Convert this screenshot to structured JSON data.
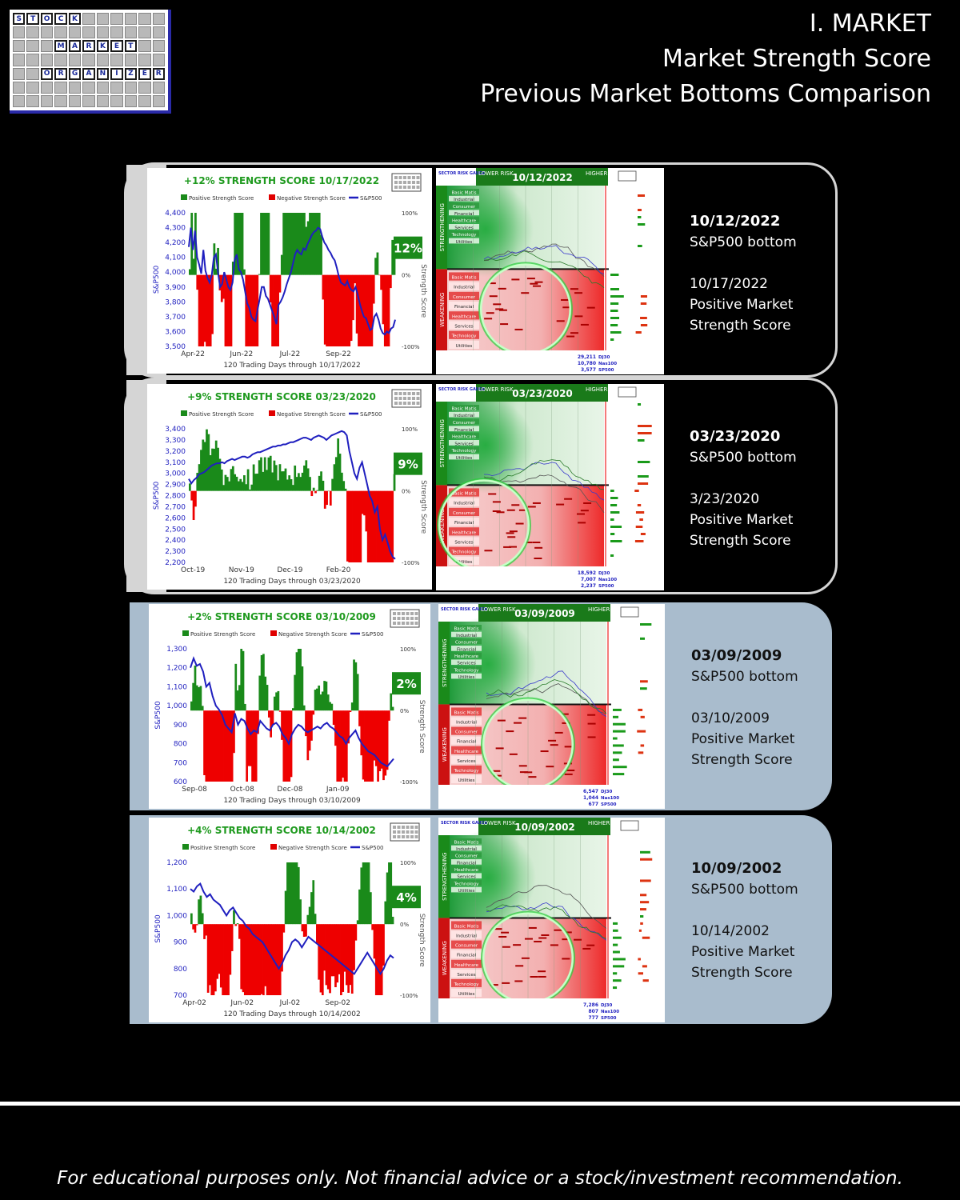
{
  "logo": {
    "rows": [
      [
        "S",
        "T",
        "O",
        "C",
        "K",
        "",
        "",
        "",
        "",
        "",
        ""
      ],
      [
        "",
        "",
        "",
        "",
        "",
        "",
        "",
        "",
        "",
        "",
        ""
      ],
      [
        "",
        "",
        "",
        "M",
        "A",
        "R",
        "K",
        "E",
        "T",
        "",
        ""
      ],
      [
        "",
        "",
        "",
        "",
        "",
        "",
        "",
        "",
        "",
        "",
        ""
      ],
      [
        "",
        "",
        "O",
        "R",
        "G",
        "A",
        "N",
        "I",
        "Z",
        "E",
        "R"
      ],
      [
        "",
        "",
        "",
        "",
        "",
        "",
        "",
        "",
        "",
        "",
        ""
      ],
      [
        "",
        "",
        "",
        "",
        "",
        "",
        "",
        "",
        "",
        "",
        ""
      ]
    ]
  },
  "header": {
    "line1": "I. MARKET",
    "line2": "Market Strength Score",
    "line3": "Previous Market Bottoms Comparison"
  },
  "panels": [
    {
      "note_bottom_date": "10/12/2022",
      "note_bottom_label": "S&P500 bottom",
      "note_score_date": "10/17/2022",
      "note_score_line1": "Positive Market",
      "note_score_line2": "Strength Score",
      "gauge_date": "10/12/2022",
      "gauge_values": [
        "29,211",
        "10,780",
        "3,577"
      ]
    },
    {
      "note_bottom_date": "03/23/2020",
      "note_bottom_label": "S&P500 bottom",
      "note_score_date": "3/23/2020",
      "note_score_line1": "Positive Market",
      "note_score_line2": "Strength Score",
      "gauge_date": "03/23/2020",
      "gauge_values": [
        "18,592",
        "7,007",
        "2,237"
      ]
    },
    {
      "note_bottom_date": "03/09/2009",
      "note_bottom_label": "S&P500 bottom",
      "note_score_date": "03/10/2009",
      "note_score_line1": "Positive Market",
      "note_score_line2": "Strength Score",
      "gauge_date": "03/09/2009",
      "gauge_values": [
        "6,547",
        "1,044",
        "677"
      ]
    },
    {
      "note_bottom_date": "10/09/2002",
      "note_bottom_label": "S&P500 bottom",
      "note_score_date": "10/14/2002",
      "note_score_line1": "Positive Market",
      "note_score_line2": "Strength Score",
      "gauge_date": "10/09/2002",
      "gauge_values": [
        "7,286",
        "807",
        "777"
      ]
    }
  ],
  "gauge_common": {
    "sector_label": "SECTOR RISK GAUGE",
    "lower": "LOWER RISK",
    "higher": "HIGHER RISK",
    "strengthening": "STRENGTHENING",
    "weakening": "WEAKENING",
    "index_labels": [
      "DJ30",
      "Nas100",
      "SP500"
    ],
    "sectors": [
      "Basic Matls",
      "Industrial",
      "Consumer",
      "Financial",
      "Healthcare",
      "Services",
      "Technology",
      "Utilities"
    ]
  },
  "chart_data": [
    {
      "type": "bar",
      "title": "+12% STRENGTH SCORE 10/17/2022",
      "legend": [
        "Positive Strength Score",
        "Negative Strength Score",
        "S&P500"
      ],
      "ylabel": "S&P500",
      "y2label": "Strength Score",
      "xlabel": "120 Trading Days through 10/17/2022",
      "xticks": [
        "Apr-22",
        "Jun-22",
        "Jul-22",
        "Sep-22"
      ],
      "yticks": [
        "4,400",
        "4,300",
        "4,200",
        "4,100",
        "4,000",
        "3,900",
        "3,800",
        "3,700",
        "3,600",
        "3,500"
      ],
      "y2ticks": [
        "100%",
        "0%",
        "-100%"
      ],
      "ylim": [
        3500,
        4400
      ],
      "latest_label": "12%",
      "latest_score": 12,
      "sp500": [
        4170,
        4300,
        4150,
        4280,
        4100,
        4050,
        3990,
        4150,
        4010,
        3960,
        3930,
        3980,
        4100,
        4120,
        4000,
        3900,
        3920,
        4000,
        3950,
        3900,
        3880,
        3930,
        4080,
        4120,
        4020,
        4000,
        3950,
        3870,
        3790,
        3760,
        3700,
        3680,
        3670,
        3750,
        3820,
        3900,
        3900,
        3840,
        3820,
        3780,
        3740,
        3700,
        3650,
        3780,
        3800,
        3830,
        3870,
        3920,
        3960,
        4000,
        4060,
        4120,
        4150,
        4130,
        4120,
        4160,
        4150,
        4190,
        4220,
        4250,
        4270,
        4280,
        4300,
        4290,
        4240,
        4200,
        4180,
        4150,
        4130,
        4100,
        4080,
        4030,
        3970,
        3930,
        3920,
        3910,
        3940,
        3900,
        3880,
        3870,
        3900,
        3850,
        3790,
        3740,
        3700,
        3690,
        3650,
        3610,
        3620,
        3700,
        3720,
        3680,
        3620,
        3590,
        3580,
        3600,
        3590,
        3620,
        3630,
        3680
      ]
    },
    {
      "type": "bar",
      "title": "+9% STRENGTH SCORE 03/23/2020",
      "legend": [
        "Positive Strength Score",
        "Negative Strength Score",
        "S&P500"
      ],
      "ylabel": "S&P500",
      "y2label": "Strength Score",
      "xlabel": "120 Trading Days through 03/23/2020",
      "xticks": [
        "Oct-19",
        "Nov-19",
        "Dec-19",
        "Feb-20"
      ],
      "yticks": [
        "3,400",
        "3,300",
        "3,200",
        "3,100",
        "3,000",
        "2,900",
        "2,800",
        "2,700",
        "2,600",
        "2,500",
        "2,400",
        "2,300",
        "2,200"
      ],
      "y2ticks": [
        "100%",
        "0%",
        "-100%"
      ],
      "ylim": [
        2200,
        3400
      ],
      "latest_label": "9%",
      "latest_score": 9,
      "sp500": [
        2950,
        2910,
        2940,
        2960,
        2990,
        3000,
        3010,
        3030,
        3050,
        3070,
        3080,
        3090,
        3090,
        3100,
        3090,
        3110,
        3120,
        3130,
        3120,
        3130,
        3140,
        3150,
        3150,
        3140,
        3150,
        3170,
        3180,
        3190,
        3190,
        3200,
        3210,
        3220,
        3230,
        3240,
        3240,
        3250,
        3250,
        3260,
        3260,
        3270,
        3280,
        3280,
        3290,
        3300,
        3310,
        3320,
        3320,
        3310,
        3300,
        3320,
        3330,
        3340,
        3330,
        3320,
        3300,
        3320,
        3340,
        3350,
        3360,
        3370,
        3380,
        3370,
        3340,
        3200,
        3100,
        3000,
        2950,
        3050,
        3100,
        3000,
        2900,
        2800,
        2750,
        2650,
        2700,
        2500,
        2400,
        2450,
        2380,
        2300,
        2250,
        2230
      ]
    },
    {
      "type": "bar",
      "title": "+2% STRENGTH SCORE 03/10/2009",
      "legend": [
        "Positive Strength Score",
        "Negative Strength Score",
        "S&P500"
      ],
      "ylabel": "S&P500",
      "y2label": "Strength Score",
      "xlabel": "120 Trading Days through 03/10/2009",
      "xticks": [
        "Sep-08",
        "Oct-08",
        "Dec-08",
        "Jan-09"
      ],
      "yticks": [
        "1,300",
        "1,200",
        "1,100",
        "1,000",
        "900",
        "800",
        "700",
        "600"
      ],
      "y2ticks": [
        "100%",
        "0%",
        "-100%"
      ],
      "ylim": [
        600,
        1300
      ],
      "latest_label": "2%",
      "latest_score": 2,
      "sp500": [
        1200,
        1250,
        1210,
        1220,
        1180,
        1100,
        1120,
        1050,
        1000,
        980,
        950,
        900,
        880,
        860,
        960,
        900,
        930,
        920,
        880,
        850,
        870,
        860,
        920,
        900,
        880,
        870,
        900,
        910,
        890,
        850,
        830,
        800,
        850,
        880,
        900,
        890,
        870,
        860,
        870,
        880,
        890,
        880,
        900,
        910,
        890,
        880,
        860,
        840,
        830,
        800,
        830,
        850,
        870,
        830,
        800,
        780,
        760,
        750,
        740,
        720,
        700,
        690,
        680,
        700,
        720
      ]
    },
    {
      "type": "bar",
      "title": "+4% STRENGTH SCORE 10/14/2002",
      "legend": [
        "Positive Strength Score",
        "Negative Strength Score",
        "S&P500"
      ],
      "ylabel": "S&P500",
      "y2label": "Strength Score",
      "xlabel": "120 Trading Days through 10/14/2002",
      "xticks": [
        "Apr-02",
        "Jun-02",
        "Jul-02",
        "Sep-02"
      ],
      "yticks": [
        "1,200",
        "1,100",
        "1,000",
        "900",
        "800",
        "700"
      ],
      "y2ticks": [
        "100%",
        "0%",
        "-100%"
      ],
      "ylim": [
        700,
        1200
      ],
      "latest_label": "4%",
      "latest_score": 4,
      "sp500": [
        1100,
        1090,
        1110,
        1120,
        1090,
        1070,
        1080,
        1060,
        1050,
        1040,
        1020,
        1000,
        1020,
        1030,
        1010,
        990,
        980,
        960,
        950,
        930,
        920,
        910,
        900,
        880,
        860,
        840,
        820,
        800,
        820,
        850,
        870,
        900,
        910,
        900,
        880,
        900,
        920,
        910,
        900,
        890,
        880,
        870,
        860,
        850,
        840,
        830,
        820,
        810,
        800,
        790,
        780,
        800,
        820,
        840,
        860,
        840,
        820,
        800,
        780,
        800,
        830,
        850,
        840
      ]
    }
  ]
}
